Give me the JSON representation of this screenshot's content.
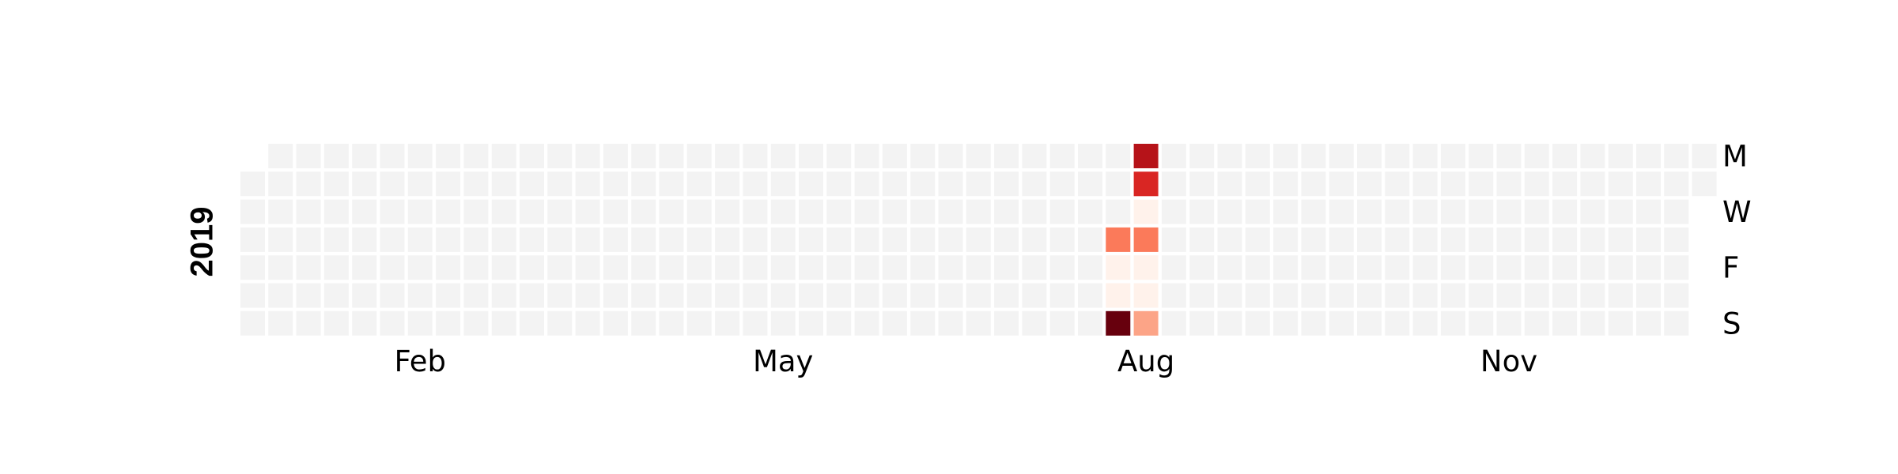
{
  "chart_data": {
    "type": "heatmap",
    "year_label": "2019",
    "month_labels": [
      "Feb",
      "May",
      "Aug",
      "Nov"
    ],
    "weekday_labels": [
      "M",
      "W",
      "F",
      "S"
    ],
    "first_day_weekday": 1,
    "num_days": 365,
    "empty_color": "#f3f3f3",
    "active_days": [
      {
        "date": "2019-08-08",
        "value": 0.45
      },
      {
        "date": "2019-08-09",
        "value": 0.02
      },
      {
        "date": "2019-08-10",
        "value": 0.02
      },
      {
        "date": "2019-08-11",
        "value": 1.0
      },
      {
        "date": "2019-08-12",
        "value": 0.82
      },
      {
        "date": "2019-08-13",
        "value": 0.7
      },
      {
        "date": "2019-08-14",
        "value": 0.02
      },
      {
        "date": "2019-08-15",
        "value": 0.45
      },
      {
        "date": "2019-08-16",
        "value": 0.02
      },
      {
        "date": "2019-08-17",
        "value": 0.02
      },
      {
        "date": "2019-08-18",
        "value": 0.32
      }
    ]
  }
}
